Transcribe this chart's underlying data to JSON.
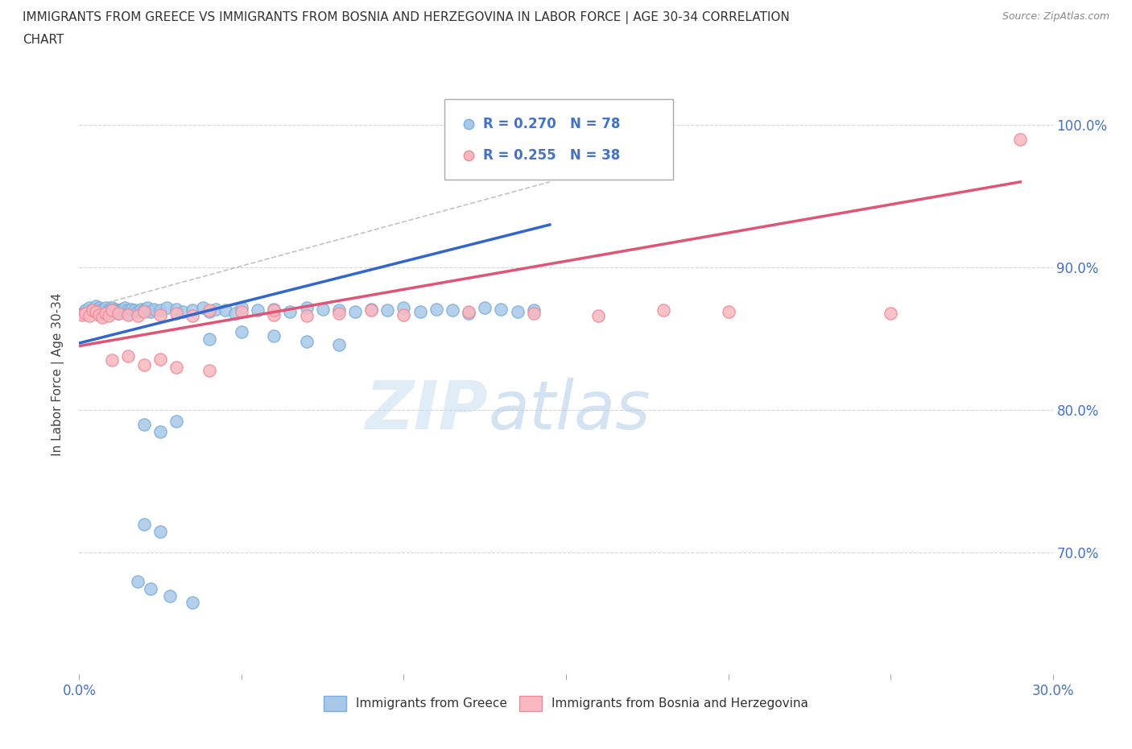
{
  "title": "IMMIGRANTS FROM GREECE VS IMMIGRANTS FROM BOSNIA AND HERZEGOVINA IN LABOR FORCE | AGE 30-34 CORRELATION\nCHART",
  "source": "Source: ZipAtlas.com",
  "ylabel": "In Labor Force | Age 30-34",
  "xlim": [
    0.0,
    0.3
  ],
  "ylim": [
    0.615,
    1.035
  ],
  "yticks": [
    0.7,
    0.8,
    0.9,
    1.0
  ],
  "ytick_labels": [
    "70.0%",
    "80.0%",
    "90.0%",
    "100.0%"
  ],
  "xticks": [
    0.0,
    0.05,
    0.1,
    0.15,
    0.2,
    0.25,
    0.3
  ],
  "xtick_labels": [
    "0.0%",
    "",
    "",
    "",
    "",
    "",
    "30.0%"
  ],
  "greece_color": "#a8c8e8",
  "greece_edge_color": "#7aaddb",
  "bosnia_color": "#f9b8c0",
  "bosnia_edge_color": "#f08898",
  "greece_line_color": "#3366cc",
  "bosnia_line_color": "#e05575",
  "axis_color": "#4472c4",
  "grid_color": "#cccccc",
  "ref_line_color": "#aaaaaa",
  "legend_greece_r": "R = 0.270",
  "legend_greece_n": "N = 78",
  "legend_bosnia_r": "R = 0.255",
  "legend_bosnia_n": "N = 38",
  "background_color": "#ffffff",
  "greece_scatter_x": [
    0.001,
    0.002,
    0.003,
    0.004,
    0.005,
    0.005,
    0.006,
    0.006,
    0.007,
    0.007,
    0.008,
    0.008,
    0.009,
    0.009,
    0.01,
    0.01,
    0.01,
    0.011,
    0.011,
    0.012,
    0.012,
    0.013,
    0.013,
    0.014,
    0.014,
    0.015,
    0.015,
    0.016,
    0.017,
    0.018,
    0.019,
    0.02,
    0.021,
    0.022,
    0.023,
    0.025,
    0.027,
    0.03,
    0.032,
    0.035,
    0.038,
    0.04,
    0.042,
    0.045,
    0.048,
    0.05,
    0.055,
    0.06,
    0.065,
    0.07,
    0.075,
    0.08,
    0.085,
    0.09,
    0.095,
    0.1,
    0.105,
    0.11,
    0.115,
    0.12,
    0.125,
    0.13,
    0.135,
    0.14,
    0.04,
    0.05,
    0.06,
    0.07,
    0.08,
    0.02,
    0.025,
    0.03,
    0.02,
    0.025,
    0.018,
    0.022,
    0.028,
    0.035
  ],
  "greece_scatter_y": [
    0.868,
    0.87,
    0.872,
    0.871,
    0.873,
    0.869,
    0.868,
    0.872,
    0.87,
    0.871,
    0.869,
    0.872,
    0.87,
    0.868,
    0.871,
    0.872,
    0.87,
    0.869,
    0.871,
    0.87,
    0.868,
    0.871,
    0.87,
    0.869,
    0.872,
    0.87,
    0.868,
    0.871,
    0.87,
    0.869,
    0.871,
    0.87,
    0.872,
    0.869,
    0.871,
    0.87,
    0.872,
    0.871,
    0.869,
    0.87,
    0.872,
    0.869,
    0.871,
    0.87,
    0.868,
    0.872,
    0.87,
    0.871,
    0.869,
    0.872,
    0.871,
    0.87,
    0.869,
    0.871,
    0.87,
    0.872,
    0.869,
    0.871,
    0.87,
    0.868,
    0.872,
    0.871,
    0.869,
    0.87,
    0.85,
    0.855,
    0.852,
    0.848,
    0.846,
    0.79,
    0.785,
    0.792,
    0.72,
    0.715,
    0.68,
    0.675,
    0.67,
    0.665
  ],
  "bosnia_scatter_x": [
    0.001,
    0.002,
    0.003,
    0.004,
    0.005,
    0.006,
    0.007,
    0.008,
    0.009,
    0.01,
    0.012,
    0.015,
    0.018,
    0.02,
    0.025,
    0.03,
    0.035,
    0.04,
    0.05,
    0.06,
    0.07,
    0.08,
    0.09,
    0.1,
    0.12,
    0.14,
    0.16,
    0.18,
    0.2,
    0.25,
    0.01,
    0.015,
    0.02,
    0.025,
    0.03,
    0.04,
    0.06,
    0.29
  ],
  "bosnia_scatter_y": [
    0.867,
    0.868,
    0.866,
    0.87,
    0.869,
    0.867,
    0.865,
    0.868,
    0.866,
    0.87,
    0.868,
    0.867,
    0.866,
    0.869,
    0.867,
    0.868,
    0.866,
    0.87,
    0.869,
    0.867,
    0.866,
    0.868,
    0.87,
    0.867,
    0.869,
    0.868,
    0.866,
    0.87,
    0.869,
    0.868,
    0.835,
    0.838,
    0.832,
    0.836,
    0.83,
    0.828,
    0.87,
    0.99
  ],
  "greece_trend_x0": 0.0,
  "greece_trend_y0": 0.847,
  "greece_trend_x1": 0.145,
  "greece_trend_y1": 0.93,
  "bosnia_trend_x0": 0.0,
  "bosnia_trend_y0": 0.845,
  "bosnia_trend_x1": 0.29,
  "bosnia_trend_y1": 0.96,
  "ref_line_x0": 0.0,
  "ref_line_y0": 0.87,
  "ref_line_x1": 0.145,
  "ref_line_y1": 0.96
}
